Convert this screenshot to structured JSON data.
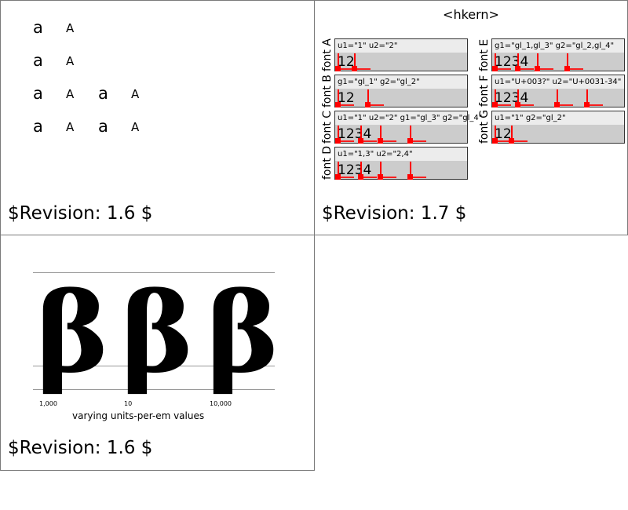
{
  "panel1": {
    "rows": [
      [
        "a",
        "A"
      ],
      [
        "a",
        "A"
      ],
      [
        "a",
        "A",
        "a",
        "A"
      ],
      [
        "a",
        "A",
        "a",
        "A"
      ]
    ],
    "revision": "$Revision: 1.6 $"
  },
  "panel2": {
    "title": "<hkern>",
    "fonts": [
      {
        "label": "font A",
        "attrs": "u1=\"1\" u2=\"2\"",
        "digits": "12"
      },
      {
        "label": "font B",
        "attrs": "g1=\"gl_1\" g2=\"gl_2\"",
        "digits": "12"
      },
      {
        "label": "font C",
        "attrs": "u1=\"1\" u2=\"2\" g1=\"gl_3\" g2=\"gl_4\"",
        "digits": "1234"
      },
      {
        "label": "font D",
        "attrs": "u1=\"1,3\" u2=\"2,4\"",
        "digits": "1234"
      },
      {
        "label": "font E",
        "attrs": "g1=\"gl_1,gl_3\" g2=\"gl_2,gl_4\"",
        "digits": "1234"
      },
      {
        "label": "font F",
        "attrs": "u1=\"U+003?\" u2=\"U+0031-34\"",
        "digits": "1234"
      },
      {
        "label": "font G",
        "attrs": "u1=\"1\" g2=\"gl_2\"",
        "digits": "12"
      }
    ],
    "marker_color": "#ff0000",
    "revision": "$Revision: 1.7 $"
  },
  "panel3": {
    "glyph": "β",
    "upm_labels": [
      "1,000",
      "10",
      "10,000"
    ],
    "caption": "varying units-per-em values",
    "revision": "$Revision: 1.6 $"
  }
}
